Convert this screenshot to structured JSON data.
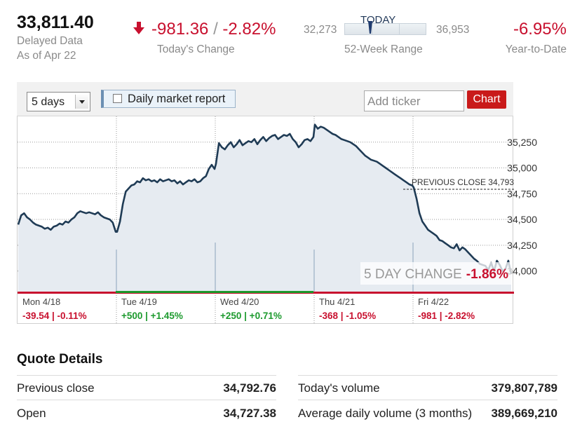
{
  "quote": {
    "price": "33,811.40",
    "delayed_label": "Delayed Data",
    "as_of": "As of Apr 22",
    "change": "-981.36",
    "separator": "/",
    "change_pct": "-2.82%",
    "change_label": "Today's Change",
    "range_low": "32,273",
    "range_high": "36,953",
    "range_today_label": "TODAY",
    "range_label": "52-Week Range",
    "range_position": 0.32,
    "ytd": "-6.95%",
    "ytd_label": "Year-to-Date"
  },
  "toolbar": {
    "period_selected": "5 days",
    "report_label": "Daily market report",
    "ticker_placeholder": "Add ticker",
    "chart_button": "Chart"
  },
  "chart_data": {
    "type": "area",
    "title": "",
    "y_ticks": [
      "35,250",
      "35,000",
      "34,750",
      "34,500",
      "34,250",
      "34,000"
    ],
    "ylim": [
      33800,
      35500
    ],
    "previous_close_label": "PREVIOUS CLOSE 34,793",
    "previous_close": 34793,
    "five_day_label": "5 DAY CHANGE",
    "five_day_value": "-1.86%",
    "days": [
      {
        "label": "Mon 4/18",
        "change": "-39.54 | -0.11%",
        "direction": "down"
      },
      {
        "label": "Tue 4/19",
        "change": "+500 | +1.45%",
        "direction": "up"
      },
      {
        "label": "Wed 4/20",
        "change": "+250 | +0.71%",
        "direction": "up"
      },
      {
        "label": "Thu 4/21",
        "change": "-368 | -1.05%",
        "direction": "down"
      },
      {
        "label": "Fri 4/22",
        "change": "-981 | -2.82%",
        "direction": "down"
      }
    ],
    "series": [
      {
        "values": [
          [
            34450,
            34540,
            34560,
            34520,
            34500,
            34470,
            34450,
            34440,
            34430,
            34410,
            34420,
            34400,
            34430,
            34440,
            34460,
            34450,
            34480,
            34470,
            34500,
            34520,
            34560,
            34580,
            34570,
            34560,
            34570,
            34560,
            34550,
            34570,
            34540,
            34520,
            34510,
            34500,
            34470,
            34380
          ],
          [
            34380,
            34480,
            34650,
            34770,
            34800,
            34830,
            34840,
            34870,
            34860,
            34900,
            34880,
            34890,
            34870,
            34880,
            34860,
            34890,
            34870,
            34880,
            34890,
            34870,
            34880,
            34850,
            34870,
            34840,
            34860,
            34880,
            34870,
            34890,
            34860,
            34870,
            34900,
            34920,
            34990,
            35030,
            34990
          ],
          [
            35040,
            35240,
            35200,
            35180,
            35220,
            35250,
            35200,
            35230,
            35270,
            35220,
            35240,
            35260,
            35250,
            35280,
            35230,
            35270,
            35300,
            35260,
            35290,
            35310,
            35320,
            35280,
            35300,
            35320,
            35310,
            35330,
            35280,
            35250,
            35200,
            35230,
            35270,
            35280,
            35260,
            35300
          ],
          [
            35420,
            35380,
            35400,
            35390,
            35370,
            35350,
            35330,
            35320,
            35300,
            35280,
            35270,
            35260,
            35250,
            35230,
            35210,
            35180,
            35150,
            35120,
            35100,
            35080,
            35070,
            35060,
            35040,
            35020,
            35000,
            34980,
            34960,
            34940,
            34920,
            34900,
            34880,
            34860,
            34840,
            34830
          ],
          [
            34810,
            34700,
            34560,
            34480,
            34440,
            34400,
            34380,
            34360,
            34340,
            34300,
            34290,
            34270,
            34250,
            34230,
            34220,
            34260,
            34200,
            34230,
            34210,
            34180,
            34150,
            34120,
            34100,
            34070,
            34060,
            34050,
            34010,
            34080,
            34000,
            34100,
            34060,
            34000,
            34020,
            34100,
            33970
          ]
        ]
      }
    ]
  },
  "details": {
    "title": "Quote Details",
    "rows": [
      {
        "label": "Previous close",
        "value": "34,792.76",
        "label2": "Today's volume",
        "value2": "379,807,789"
      },
      {
        "label": "Open",
        "value": "34,727.38",
        "label2": "Average daily volume (3 months)",
        "value2": "389,669,210"
      }
    ]
  },
  "colors": {
    "down": "#c8102e",
    "up": "#1d9a2e",
    "line": "#1f3b55",
    "fill": "#e6ebf1",
    "button": "#c91a1a"
  }
}
